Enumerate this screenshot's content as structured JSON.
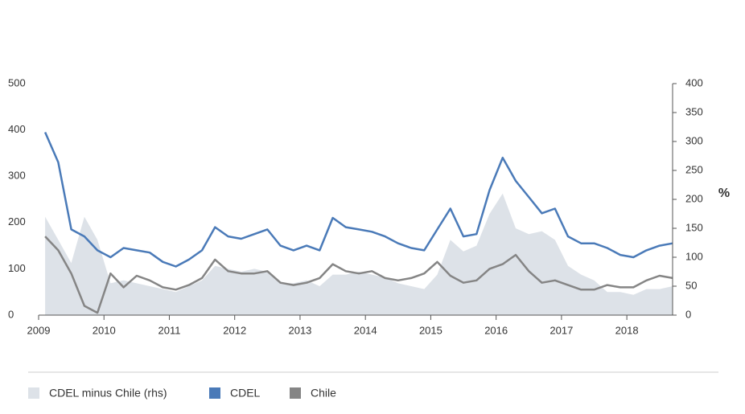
{
  "chart_data": {
    "type": "line",
    "y2label": "%",
    "x": [
      2009.1,
      2009.3,
      2009.5,
      2009.7,
      2009.9,
      2010.1,
      2010.3,
      2010.5,
      2010.7,
      2010.9,
      2011.1,
      2011.3,
      2011.5,
      2011.7,
      2011.9,
      2012.1,
      2012.3,
      2012.5,
      2012.7,
      2012.9,
      2013.1,
      2013.3,
      2013.5,
      2013.7,
      2013.9,
      2014.1,
      2014.3,
      2014.5,
      2014.7,
      2014.9,
      2015.1,
      2015.3,
      2015.5,
      2015.7,
      2015.9,
      2016.1,
      2016.3,
      2016.5,
      2016.7,
      2016.9,
      2017.1,
      2017.3,
      2017.5,
      2017.7,
      2017.9,
      2018.1,
      2018.3,
      2018.5,
      2018.7
    ],
    "series": [
      {
        "name": "CDEL minus Chile (rhs)",
        "color": "#dde2e8",
        "axis": "y2",
        "kind": "area",
        "values": [
          170,
          130,
          90,
          170,
          130,
          55,
          60,
          55,
          50,
          45,
          40,
          50,
          60,
          85,
          80,
          75,
          80,
          75,
          55,
          55,
          60,
          50,
          70,
          70,
          75,
          70,
          65,
          55,
          50,
          45,
          70,
          130,
          110,
          120,
          175,
          210,
          150,
          140,
          145,
          130,
          85,
          70,
          60,
          40,
          40,
          35,
          45,
          45,
          50
        ]
      },
      {
        "name": "CDEL",
        "color": "#4a7ab8",
        "values": [
          395,
          330,
          185,
          170,
          140,
          125,
          145,
          140,
          135,
          115,
          105,
          120,
          140,
          190,
          170,
          165,
          175,
          185,
          150,
          140,
          150,
          140,
          210,
          190,
          185,
          180,
          170,
          155,
          145,
          140,
          185,
          230,
          170,
          175,
          270,
          340,
          290,
          255,
          220,
          230,
          170,
          155,
          155,
          145,
          130,
          125,
          140,
          150,
          155
        ]
      },
      {
        "name": "Chile",
        "color": "#858585",
        "values": [
          170,
          140,
          90,
          20,
          5,
          90,
          60,
          85,
          75,
          60,
          55,
          65,
          80,
          120,
          95,
          90,
          90,
          95,
          70,
          65,
          70,
          80,
          110,
          95,
          90,
          95,
          80,
          75,
          80,
          90,
          115,
          85,
          70,
          75,
          100,
          110,
          130,
          95,
          70,
          75,
          65,
          55,
          55,
          65,
          60,
          60,
          75,
          85,
          80
        ]
      }
    ],
    "xlim": [
      2009,
      2018.7
    ],
    "xticks": [
      2009,
      2010,
      2011,
      2012,
      2013,
      2014,
      2015,
      2016,
      2017,
      2018
    ],
    "ylim": [
      0,
      500
    ],
    "yticks": [
      0,
      100,
      200,
      300,
      400,
      500
    ],
    "y2lim": [
      0,
      400
    ],
    "y2ticks": [
      0,
      50,
      100,
      150,
      200,
      250,
      300,
      350,
      400
    ]
  }
}
